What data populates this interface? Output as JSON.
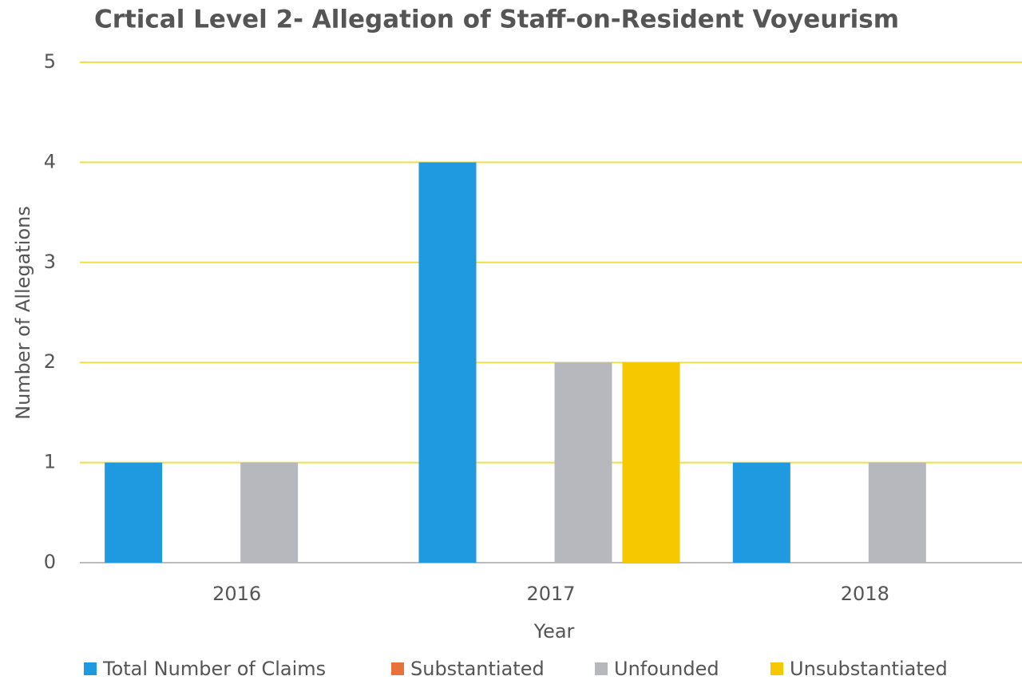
{
  "chart_data": {
    "type": "bar",
    "title": "Crtical Level 2- Allegation of Staff-on-Resident Voyeurism",
    "x_label": "Year",
    "y_label": "Number of Allegations",
    "categories": [
      "2016",
      "2017",
      "2018"
    ],
    "series": [
      {
        "name": "Total Number of Claims",
        "color": "#1f9ae0",
        "values": [
          1,
          4,
          1
        ]
      },
      {
        "name": "Substantiated",
        "color": "#e8703a",
        "values": [
          0,
          0,
          0
        ]
      },
      {
        "name": "Unfounded",
        "color": "#b7b8bd",
        "values": [
          1,
          2,
          1
        ]
      },
      {
        "name": "Unsubstantiated",
        "color": "#f5c800",
        "values": [
          0,
          2,
          0
        ]
      }
    ],
    "ylim": [
      0,
      5
    ],
    "yticks": [
      0,
      1,
      2,
      3,
      4,
      5
    ],
    "grid": true,
    "grid_color": "#efe04a",
    "legend": "bottom"
  }
}
